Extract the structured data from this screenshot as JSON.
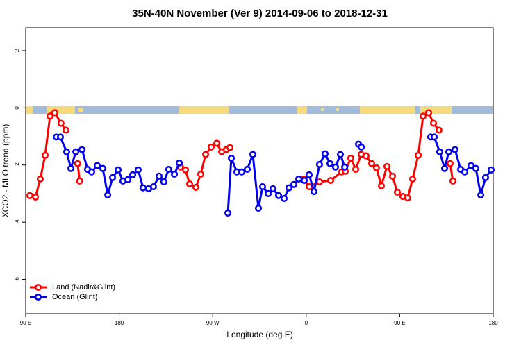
{
  "chart_data": {
    "type": "line",
    "title": "35N-40N November (Ver 9)   2014-09-06 to 2018-12-31",
    "x_label": "Longitude (deg E)",
    "y_label": "XCO2 - MLO trend (ppm)",
    "xlim": [
      90,
      540
    ],
    "ylim": [
      -7.2,
      2.8
    ],
    "xticks": [
      {
        "value": 90,
        "label": "90 E"
      },
      {
        "value": 180,
        "label": "180"
      },
      {
        "value": 270,
        "label": "90 W"
      },
      {
        "value": 360,
        "label": "0"
      },
      {
        "value": 450,
        "label": "90 E"
      },
      {
        "value": 540,
        "label": "180"
      }
    ],
    "yticks": [
      -6,
      -4,
      -2,
      0,
      2
    ],
    "legend": "bottom-left",
    "series": [
      {
        "name": "Land (Nadir&Glint)",
        "color": "#ff0000",
        "x": [
          94,
          99.4,
          104,
          108.7,
          113.4,
          118,
          124,
          128.8,
          null,
          140,
          142,
          null,
          239,
          243.8,
          247.8,
          253.8,
          258.5,
          263.2,
          268.5,
          273.9,
          278.6,
          283.2,
          286.6,
          null,
          357.5,
          362.8,
          372.8,
          383.5,
          394.2,
          397.6,
          402.9,
          407.6,
          412.9,
          417.6,
          423,
          427.6,
          432.3,
          437.7,
          443,
          447.7,
          453,
          457.7,
          462.4,
          467.8,
          472.5,
          477.8,
          482.5,
          487.8,
          null,
          498.5,
          501.2
        ],
        "values": [
          -3.07,
          -3.12,
          -2.49,
          -1.66,
          -0.29,
          -0.17,
          -0.54,
          -0.78,
          null,
          -1.95,
          -2.56,
          null,
          -2.07,
          -2.17,
          -2.66,
          -2.78,
          -2.32,
          -1.63,
          -1.37,
          -1.24,
          -1.54,
          -1.46,
          -1.39,
          null,
          -2.49,
          -2.76,
          -2.59,
          -2.54,
          -2.24,
          -2.22,
          -1.76,
          -2.15,
          -1.63,
          -1.68,
          -1.95,
          -2.1,
          -2.73,
          -2.05,
          -2.39,
          -2.95,
          -3.1,
          -3.15,
          -2.49,
          -1.66,
          -0.29,
          -0.17,
          -0.54,
          -0.78,
          null,
          -1.95,
          -2.56
        ]
      },
      {
        "name": "Ocean (Glint)",
        "color": "#0000ee",
        "x": [
          119.4,
          123.4,
          129.4,
          133.5,
          138.2,
          144.2,
          149.5,
          153.5,
          158.9,
          164.2,
          169,
          173.6,
          179,
          183.6,
          188.3,
          193,
          198.3,
          203,
          208.3,
          213,
          218.4,
          223,
          227.7,
          233.1,
          237.8,
          null,
          284.6,
          287.9,
          293.3,
          298,
          303.3,
          308.6,
          314,
          318,
          323.4,
          328,
          333.4,
          338.7,
          343.4,
          348.1,
          352.8,
          358.1,
          362.8,
          367.5,
          372.8,
          378.2,
          382.9,
          388.2,
          392.9,
          397,
          null,
          410.3,
          413,
          null,
          479.8,
          483.2,
          488.5,
          493.2,
          497.2,
          503.2,
          508.6,
          512.6,
          518.6,
          523.3,
          528,
          532.6,
          538
        ],
        "values": [
          -1.02,
          -1.02,
          -1.54,
          -2.12,
          -1.54,
          -1.46,
          -2.15,
          -2.24,
          -2.02,
          -2.12,
          -3.05,
          -2.44,
          -2.17,
          -2.56,
          -2.51,
          -2.34,
          -2.17,
          -2.8,
          -2.83,
          -2.76,
          -2.39,
          -2.59,
          -2.15,
          -2.32,
          -1.93,
          null,
          -3.68,
          -1.76,
          -2.24,
          -2.24,
          -2.15,
          -1.63,
          -3.51,
          -2.76,
          -3.0,
          -2.83,
          -3.07,
          -3.17,
          -2.8,
          -2.68,
          -2.49,
          -2.54,
          -2.34,
          -2.93,
          -1.98,
          -1.61,
          -1.95,
          -2.07,
          -1.63,
          -2.07,
          null,
          -1.27,
          -1.37,
          null,
          -1.02,
          -1.02,
          -1.54,
          -2.12,
          -1.54,
          -1.46,
          -2.15,
          -2.24,
          -2.02,
          -2.12,
          -3.05,
          -2.44,
          -2.17
        ]
      }
    ]
  }
}
